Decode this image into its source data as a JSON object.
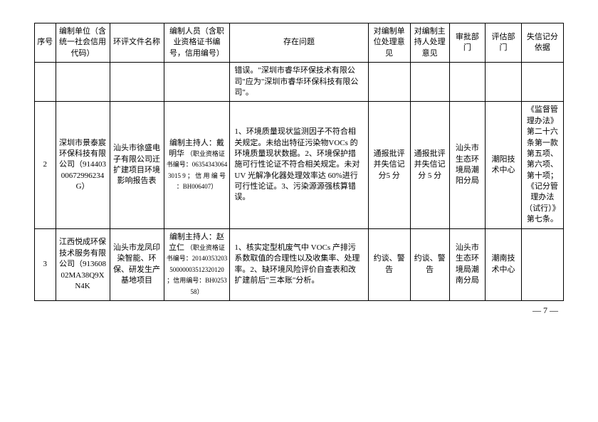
{
  "headers": {
    "seq": "序号",
    "unit": "编制单位（含统一社会信用代码）",
    "file": "环评文件名称",
    "person": "编制人员（含职业资格证书编号，信用编号）",
    "problem": "存在问题",
    "opinion1": "对编制单位处理意见",
    "opinion2": "对编制主持人处理意见",
    "dept1": "审批部门",
    "dept2": "评估部门",
    "basis": "失信记分依据"
  },
  "rows": [
    {
      "seq": "",
      "unit": "",
      "file": "",
      "person": "",
      "problem": "错误。\"深圳市睿华环保技术有限公司\"应为\"深圳市睿华环保科技有限公司\"。",
      "opinion1": "",
      "opinion2": "",
      "dept1": "",
      "dept2": "",
      "basis": ""
    },
    {
      "seq": "2",
      "unit": "深圳市景泰宸环保科技有限公司（91440300672996234G）",
      "file": "汕头市徐盛电子有限公司迁扩建项目环境影响报告表",
      "person": "编制主持人：戴明华",
      "person_small": "（职业资格证书编号：063543430643015 9 ； 信 用 编 号 ：BH006407）",
      "problem": "1、环境质量现状监测因子不符合相关规定。未给出特征污染物VOCs 的环境质量现状数据。2、环境保护措施可行性论证不符合相关规定。未对 UV 光解净化器处理效率达 60%进行可行性论证。3、污染源源强核算错误。",
      "opinion1": "通报批评并失信记分5 分",
      "opinion2": "通报批评并失信记分 5 分",
      "dept1": "汕头市生态环境局潮阳分局",
      "dept2": "潮阳技术中心",
      "basis": "《监督管理办法》第二十六条第一款第五项、第六项、第十项；《记分管理办法（试行）》第七条。"
    },
    {
      "seq": "3",
      "unit": "江西悦成环保技术服务有限公司（91360802MA38Q9XN4K",
      "file": "汕头市龙凤印染智能、环保、研发生产基地项目",
      "person": "编制主持人：赵立仁",
      "person_small": "（职业资格证书编号：2014035320350000003512320120 ；信用编号：BH025358）",
      "problem": "1、核实定型机废气中 VOCs 产排污系数取值的合理性以及收集率、处理率。2、缺环境风险评价自查表和改扩建前后\"三本账\"分析。",
      "opinion1": "约谈、警告",
      "opinion2": "约谈、警告",
      "dept1": "汕头市生态环境局潮南分局",
      "dept2": "潮南技术中心",
      "basis": ""
    }
  ],
  "pageNum": "— 7 —"
}
